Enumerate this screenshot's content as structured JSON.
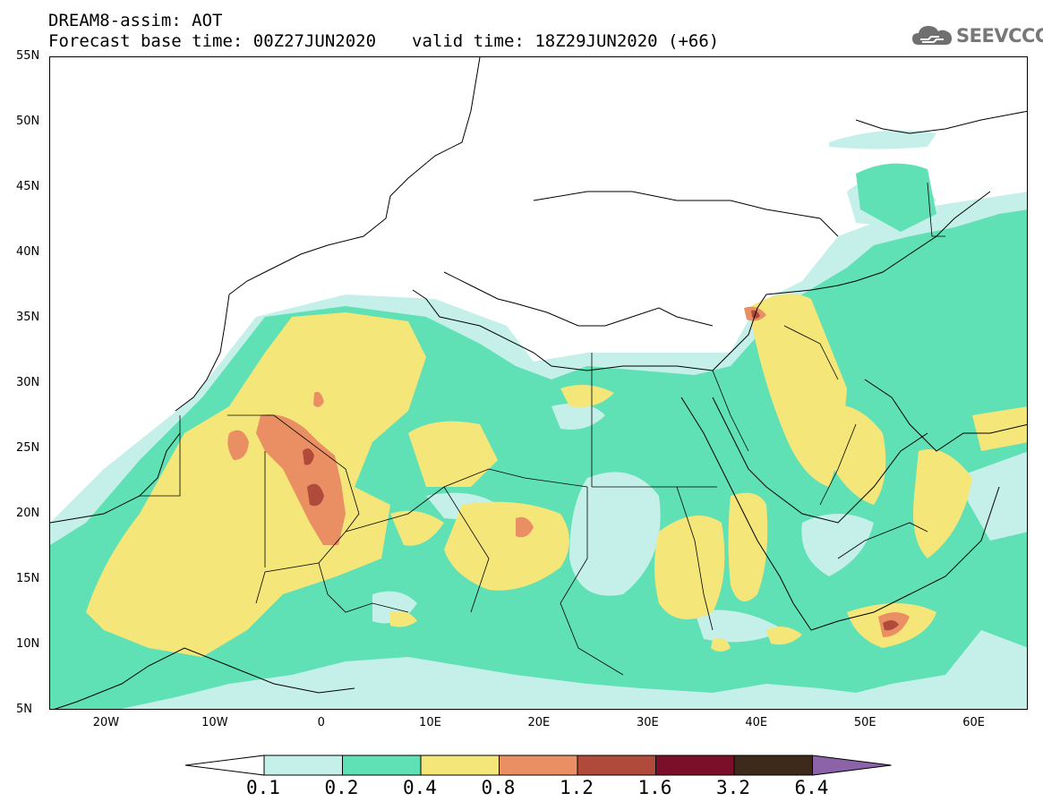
{
  "header": {
    "title_line1": "DREAM8-assim: AOT",
    "base_time": "Forecast base time: 00Z27JUN2020",
    "valid_time": "valid time: 18Z29JUN2020 (+66)"
  },
  "logo": {
    "text": "SEEVCCC",
    "icon": "cloud-logo-icon"
  },
  "map": {
    "lat_range": [
      5,
      55
    ],
    "lon_range": [
      -25,
      65
    ],
    "lat_ticks": [
      "55N",
      "50N",
      "45N",
      "40N",
      "35N",
      "30N",
      "25N",
      "20N",
      "15N",
      "10N",
      "5N"
    ],
    "lon_ticks": [
      "20W",
      "10W",
      "0",
      "10E",
      "20E",
      "30E",
      "40E",
      "50E",
      "60E"
    ],
    "field": "AOT (aerosol optical thickness)"
  },
  "colorbar": {
    "labels": [
      "0.1",
      "0.2",
      "0.4",
      "0.8",
      "1.2",
      "1.6",
      "3.2",
      "6.4"
    ],
    "colors": [
      "#ffffff",
      "#c5efe9",
      "#5fe0b5",
      "#f5e67a",
      "#e98f63",
      "#b04a3a",
      "#7b0f2a",
      "#3d2a1a",
      "#8c62a8"
    ]
  },
  "colors": {
    "aot_0_1": "#c5efe9",
    "aot_0_2": "#5fe0b5",
    "aot_0_4": "#f5e67a",
    "aot_0_8": "#e98f63",
    "aot_1_2": "#b04a3a"
  }
}
